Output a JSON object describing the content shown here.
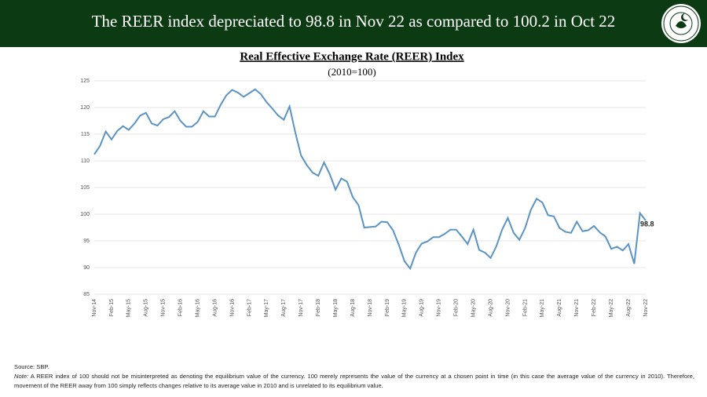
{
  "header": {
    "title": "The REER index depreciated to 98.8 in Nov 22 as compared to 100.2 in Oct 22"
  },
  "chart_data": {
    "type": "line",
    "title": "Real Effective Exchange Rate (REER) Index",
    "subtitle": "(2010=100)",
    "categories": [
      "Nov-14",
      null,
      null,
      "Feb-15",
      null,
      null,
      "May-15",
      null,
      null,
      "Aug-15",
      null,
      null,
      "Nov-15",
      null,
      null,
      "Feb-16",
      null,
      null,
      "May-16",
      null,
      null,
      "Aug-16",
      null,
      null,
      "Nov-16",
      null,
      null,
      "Feb-17",
      null,
      null,
      "May-17",
      null,
      null,
      "Aug-17",
      null,
      null,
      "Nov-17",
      null,
      null,
      "Feb-18",
      null,
      null,
      "May-18",
      null,
      null,
      "Aug-18",
      null,
      null,
      "Nov-18",
      null,
      null,
      "Feb-19",
      null,
      null,
      "May-19",
      null,
      null,
      "Aug-19",
      null,
      null,
      "Nov-19",
      null,
      null,
      "Feb-20",
      null,
      null,
      "May-20",
      null,
      null,
      "Aug-20",
      null,
      null,
      "Nov-20",
      null,
      null,
      "Feb-21",
      null,
      null,
      "May-21",
      null,
      null,
      "Aug-21",
      null,
      null,
      "Nov-21",
      null,
      null,
      "Feb-22",
      null,
      null,
      "May-22",
      null,
      null,
      "Aug-22",
      null,
      null,
      "Nov-22"
    ],
    "series": [
      {
        "name": "REER",
        "color": "#5b93c4",
        "values": [
          111.2,
          112.8,
          115.5,
          114.0,
          115.6,
          116.5,
          115.8,
          117.0,
          118.5,
          119.0,
          117.0,
          116.6,
          117.8,
          118.2,
          119.3,
          117.5,
          116.4,
          116.4,
          117.3,
          119.3,
          118.3,
          118.3,
          120.5,
          122.3,
          123.3,
          122.8,
          122.0,
          122.7,
          123.4,
          122.5,
          121.0,
          119.8,
          118.5,
          117.7,
          120.2,
          115.3,
          111.0,
          109.2,
          107.8,
          107.2,
          109.7,
          107.5,
          104.6,
          106.7,
          106.1,
          103.2,
          101.7,
          97.5,
          97.6,
          97.7,
          98.6,
          98.5,
          97.0,
          94.3,
          91.2,
          89.8,
          92.8,
          94.5,
          94.9,
          95.7,
          95.7,
          96.3,
          97.1,
          97.1,
          95.8,
          94.4,
          97.1,
          93.3,
          92.8,
          91.8,
          94.0,
          97.1,
          99.3,
          96.5,
          95.2,
          97.4,
          100.8,
          102.9,
          102.2,
          99.8,
          99.6,
          97.4,
          96.7,
          96.5,
          98.6,
          96.8,
          97.0,
          97.8,
          96.6,
          95.8,
          93.5,
          93.9,
          93.2,
          94.4,
          90.7,
          100.2,
          98.8
        ]
      }
    ],
    "ylim": [
      85,
      125
    ],
    "yticks": [
      85,
      90,
      95,
      100,
      105,
      110,
      115,
      120,
      125
    ],
    "grid": true
  },
  "footer": {
    "source": "Source: SBP.",
    "note_label": "Note:",
    "note": "A REER index of 100 should not be misinterpreted as denoting the equilibrium value of the currency. 100 merely represents the value of the currency at a chosen point in time (in this case the average value of the currency in 2010). Therefore, movement of the REER away from 100 simply reflects changes relative to its average value in 2010 and is unrelated to its equilibrium value."
  }
}
